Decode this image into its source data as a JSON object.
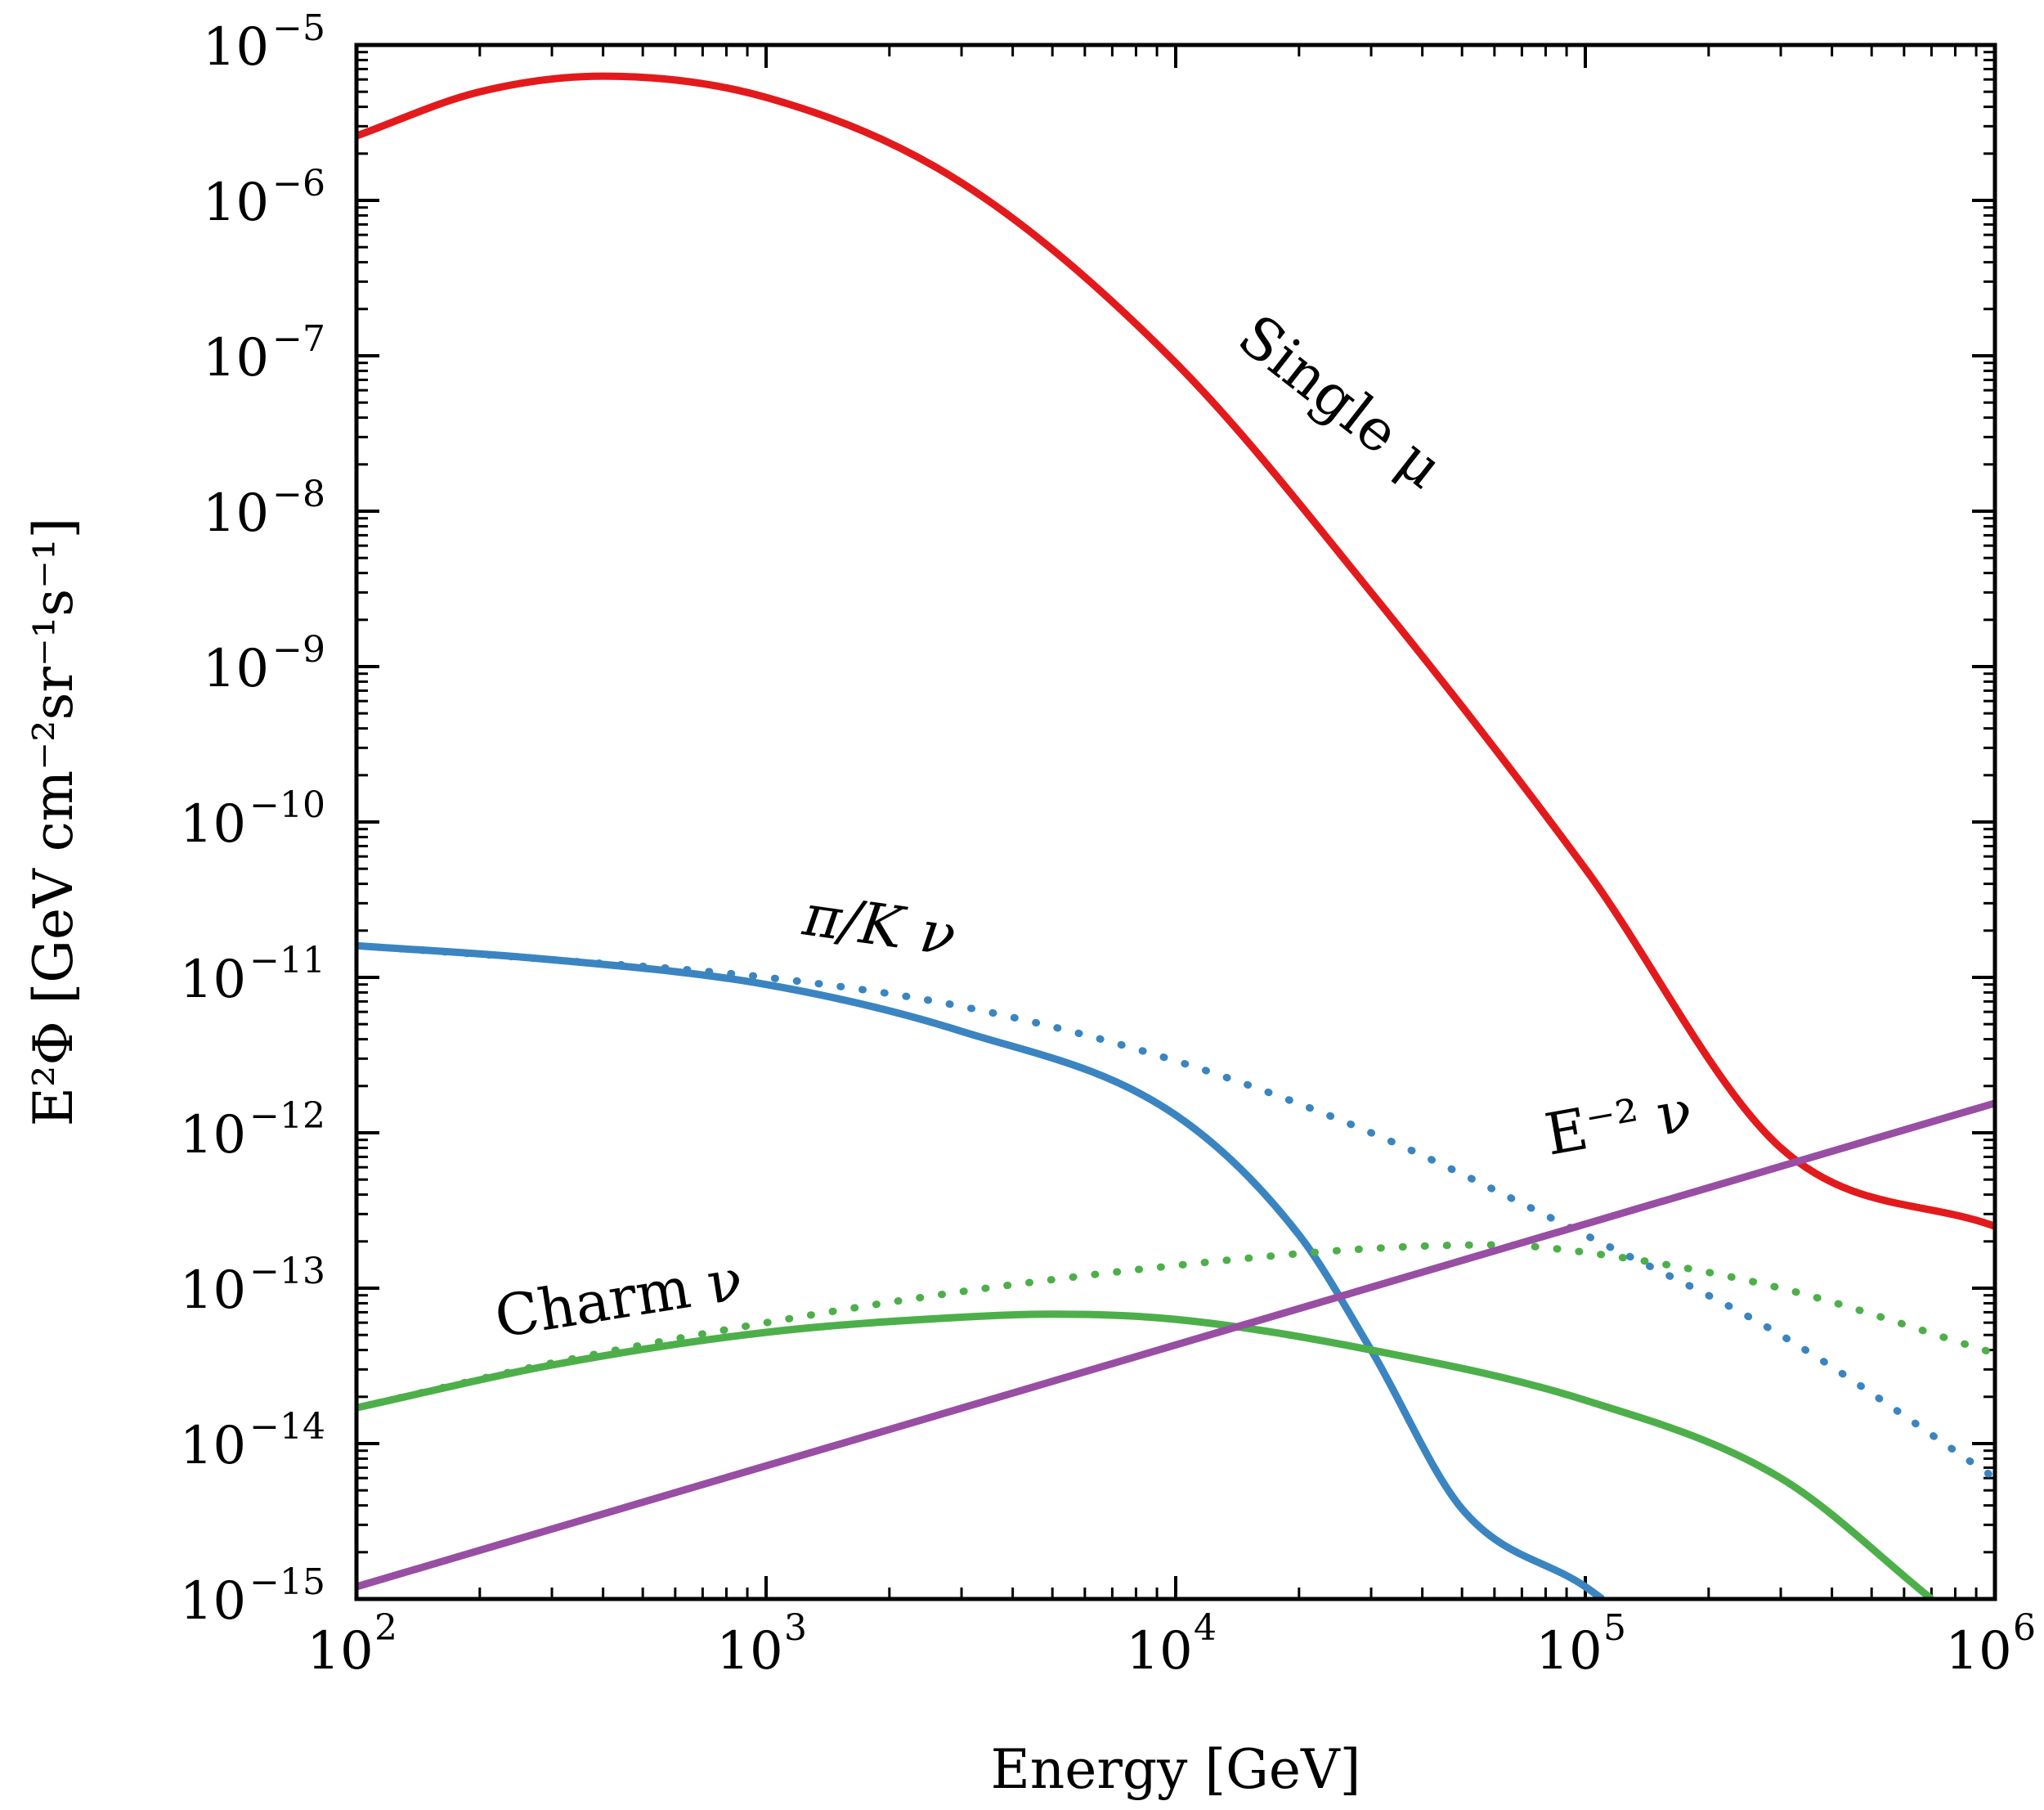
{
  "chart_data": {
    "type": "line",
    "title": "",
    "xlabel": "Energy [GeV]",
    "ylabel": "E²Φ [GeV cm⁻²sr⁻¹s⁻¹]",
    "x_scale": "log",
    "y_scale": "log",
    "xlim": [
      100,
      1000000
    ],
    "ylim": [
      1e-15,
      1e-05
    ],
    "grid": false,
    "x_ticks": [
      {
        "base": "10",
        "exp": "2",
        "value": 100
      },
      {
        "base": "10",
        "exp": "3",
        "value": 1000
      },
      {
        "base": "10",
        "exp": "4",
        "value": 10000
      },
      {
        "base": "10",
        "exp": "5",
        "value": 100000
      },
      {
        "base": "10",
        "exp": "6",
        "value": 1000000
      }
    ],
    "y_ticks": [
      {
        "base": "10",
        "exp": "−5",
        "value": 1e-05
      },
      {
        "base": "10",
        "exp": "−6",
        "value": 1e-06
      },
      {
        "base": "10",
        "exp": "−7",
        "value": 1e-07
      },
      {
        "base": "10",
        "exp": "−8",
        "value": 1e-08
      },
      {
        "base": "10",
        "exp": "−9",
        "value": 1e-09
      },
      {
        "base": "10",
        "exp": "−10",
        "value": 1e-10
      },
      {
        "base": "10",
        "exp": "−11",
        "value": 1e-11
      },
      {
        "base": "10",
        "exp": "−12",
        "value": 1e-12
      },
      {
        "base": "10",
        "exp": "−13",
        "value": 1e-13
      },
      {
        "base": "10",
        "exp": "−14",
        "value": 1e-14
      },
      {
        "base": "10",
        "exp": "−15",
        "value": 1e-15
      }
    ],
    "series": [
      {
        "name": "Single μ",
        "color": "#e31a1c",
        "style": "solid",
        "x": [
          100,
          200,
          400,
          1000,
          3000,
          10000,
          30000,
          100000,
          300000,
          1000000
        ],
        "y": [
          2.6e-06,
          5e-06,
          6.3e-06,
          4.6e-06,
          1.3e-06,
          9e-08,
          3e-09,
          5e-11,
          8e-13,
          2.5e-13
        ]
      },
      {
        "name": "π/K ν",
        "color": "#3a85c1",
        "style": "solid",
        "x": [
          100,
          300,
          1000,
          3000,
          10000,
          20000,
          30000,
          50000,
          100000,
          110000
        ],
        "y": [
          1.6e-11,
          1.3e-11,
          9e-12,
          4.5e-12,
          1.3e-12,
          2.2e-13,
          4e-14,
          3.8e-15,
          1.2e-15,
          1e-15
        ]
      },
      {
        "name": "π/K ν",
        "color": "#3a85c1",
        "style": "dotted",
        "x": [
          100,
          300,
          1000,
          3000,
          10000,
          30000,
          100000,
          300000,
          1000000
        ],
        "y": [
          1.6e-11,
          1.3e-11,
          1e-11,
          6.5e-12,
          2.9e-12,
          1e-12,
          2.2e-13,
          5e-14,
          6e-15
        ]
      },
      {
        "name": "Charm ν",
        "color": "#4daf4a",
        "style": "solid",
        "x": [
          100,
          300,
          1000,
          3000,
          5000,
          10000,
          30000,
          100000,
          300000,
          700000
        ],
        "y": [
          1.7e-14,
          3.2e-14,
          5.2e-14,
          6.5e-14,
          6.8e-14,
          6.3e-14,
          4e-14,
          1.9e-14,
          6e-15,
          1e-15
        ]
      },
      {
        "name": "Charm ν",
        "color": "#4daf4a",
        "style": "dotted",
        "x": [
          100,
          300,
          1000,
          3000,
          10000,
          30000,
          60000,
          100000,
          300000,
          1000000
        ],
        "y": [
          1.7e-14,
          3.3e-14,
          6e-14,
          9.5e-14,
          1.4e-13,
          1.8e-13,
          1.9e-13,
          1.7e-13,
          1e-13,
          3.8e-14
        ]
      },
      {
        "name": "E⁻² ν",
        "color": "#984ea3",
        "style": "solid",
        "x": [
          100,
          1000000
        ],
        "y": [
          1.2e-15,
          1.55e-12
        ]
      }
    ],
    "annotations": [
      {
        "series": "Single μ",
        "text": "Single μ"
      },
      {
        "series": "π/K ν",
        "text": "π/K ν"
      },
      {
        "series": "E⁻² ν",
        "text": "E⁻² ν"
      },
      {
        "series": "Charm ν",
        "text": "Charm ν"
      }
    ]
  }
}
